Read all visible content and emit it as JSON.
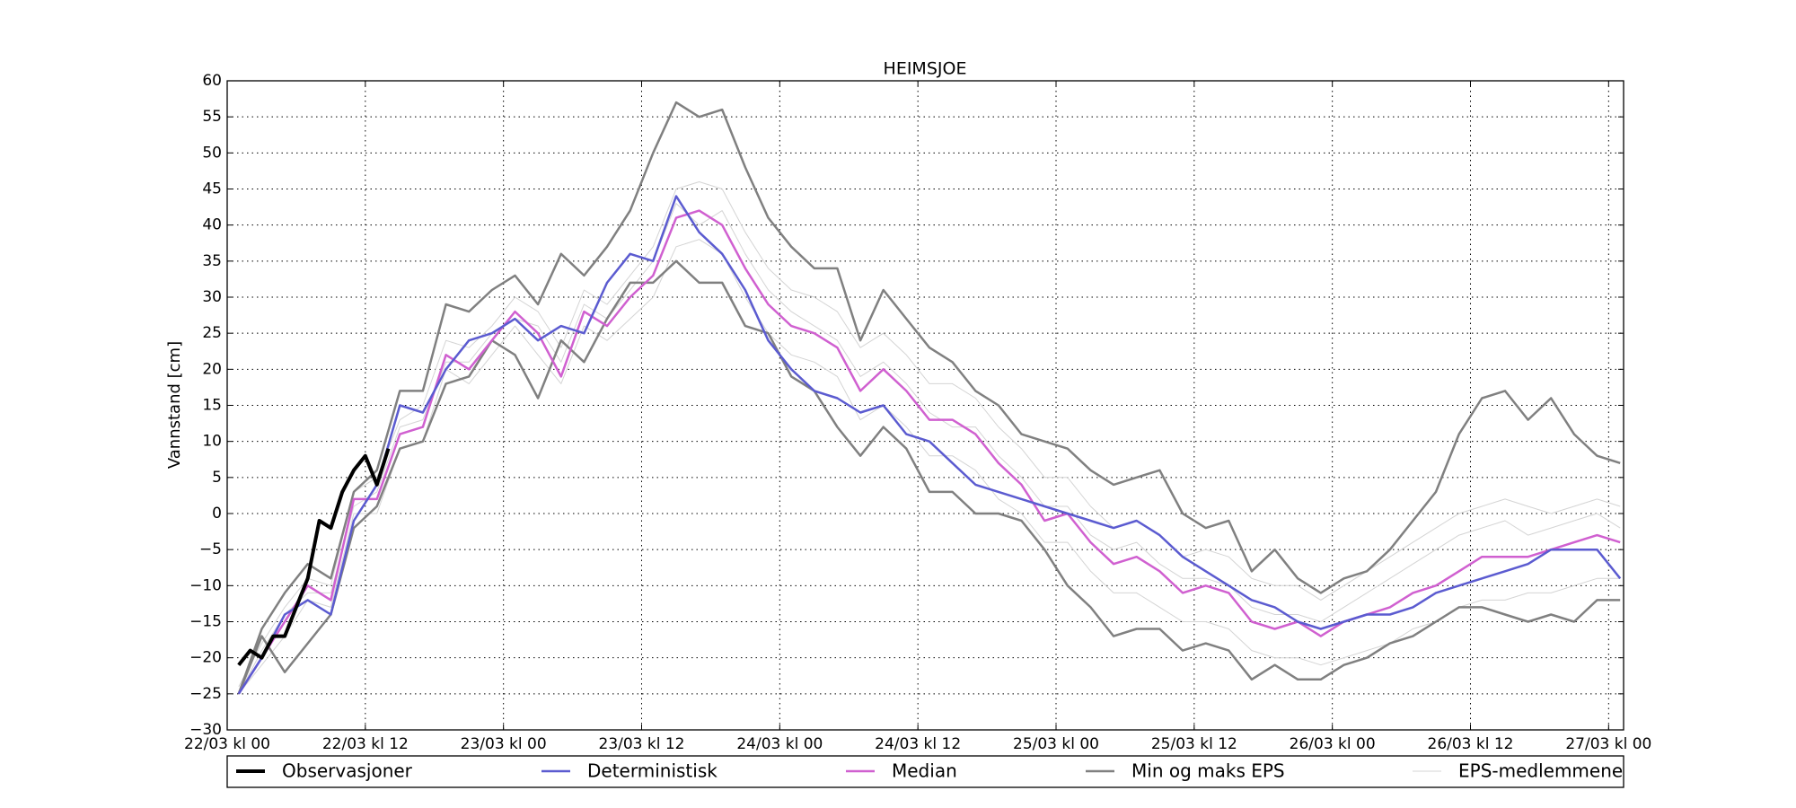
{
  "chart_data": {
    "type": "line",
    "title": "HEIMSJOE",
    "y_label": "Vannstand [cm]",
    "x": [
      1,
      3,
      5,
      7,
      9,
      11,
      13,
      15,
      17,
      19,
      21,
      23,
      25,
      27,
      29,
      31,
      33,
      35,
      37,
      39,
      41,
      43,
      45,
      47,
      49,
      51,
      53,
      55,
      57,
      59,
      61,
      63,
      65,
      67,
      69,
      71,
      73,
      75,
      77,
      79,
      81,
      83,
      85,
      87,
      89,
      91,
      93,
      95,
      97,
      99,
      101,
      103,
      105,
      107,
      109,
      111,
      113,
      115,
      117,
      119,
      121
    ],
    "xlim": [
      0,
      121.3
    ],
    "xticks": [
      {
        "value": 0,
        "label": "22/03 kl 00"
      },
      {
        "value": 12,
        "label": "22/03 kl 12"
      },
      {
        "value": 24,
        "label": "23/03 kl 00"
      },
      {
        "value": 36,
        "label": "23/03 kl 12"
      },
      {
        "value": 48,
        "label": "24/03 kl 00"
      },
      {
        "value": 60,
        "label": "24/03 kl 12"
      },
      {
        "value": 72,
        "label": "25/03 kl 00"
      },
      {
        "value": 84,
        "label": "25/03 kl 12"
      },
      {
        "value": 96,
        "label": "26/03 kl 00"
      },
      {
        "value": 108,
        "label": "26/03 kl 12"
      },
      {
        "value": 120,
        "label": "27/03 kl 00"
      }
    ],
    "ylim": [
      -30,
      60
    ],
    "yticks": [
      {
        "value": -30,
        "label": "−30"
      },
      {
        "value": -25,
        "label": "−25"
      },
      {
        "value": -20,
        "label": "−20"
      },
      {
        "value": -15,
        "label": "−15"
      },
      {
        "value": -10,
        "label": "−10"
      },
      {
        "value": -5,
        "label": "−5"
      },
      0,
      5,
      10,
      15,
      20,
      25,
      30,
      35,
      40,
      45,
      50,
      55,
      60
    ],
    "grid": true,
    "legend": "bottom",
    "series": [
      {
        "name": "Observasjoner",
        "color": "#000000",
        "x": [
          1,
          2,
          3,
          4,
          5,
          6,
          7,
          8,
          9,
          10,
          11,
          12,
          13,
          14
        ],
        "values": [
          -21,
          -19,
          -20,
          -17,
          -17,
          -13,
          -9,
          -1,
          -2,
          3,
          6,
          8,
          4,
          9
        ]
      },
      {
        "name": "Deterministisk",
        "color": "#5b5bd0",
        "values": [
          -25,
          -20,
          -14,
          -12,
          -14,
          -1,
          4,
          15,
          14,
          20,
          24,
          25,
          27,
          24,
          26,
          25,
          32,
          36,
          35,
          44,
          39,
          36,
          31,
          24,
          20,
          17,
          16,
          14,
          15,
          11,
          10,
          7,
          4,
          3,
          2,
          1,
          0,
          -1,
          -2,
          -1,
          -3,
          -6,
          -8,
          -10,
          -12,
          -13,
          -15,
          -16,
          -15,
          -14,
          -14,
          -13,
          -11,
          -10,
          -9,
          -8,
          -7,
          -5,
          -5,
          -5,
          -9
        ]
      },
      {
        "name": "Median",
        "color": "#d060d0",
        "values": [
          -25,
          -20,
          -15,
          -10,
          -12,
          2,
          2,
          11,
          12,
          22,
          20,
          24,
          28,
          25,
          19,
          28,
          26,
          30,
          33,
          41,
          42,
          40,
          34,
          29,
          26,
          25,
          23,
          17,
          20,
          17,
          13,
          13,
          11,
          7,
          4,
          -1,
          0,
          -4,
          -7,
          -6,
          -8,
          -11,
          -10,
          -11,
          -15,
          -16,
          -15,
          -17,
          -15,
          -14,
          -13,
          -11,
          -10,
          -8,
          -6,
          -6,
          -6,
          -5,
          -4,
          -3,
          -4
        ]
      },
      {
        "name": "Min og maks EPS",
        "color": "#808080",
        "lower": [
          -25,
          -17,
          -22,
          -18,
          -14,
          -2,
          1,
          9,
          10,
          18,
          19,
          24,
          22,
          16,
          24,
          21,
          27,
          32,
          32,
          35,
          32,
          32,
          26,
          25,
          19,
          17,
          12,
          8,
          12,
          9,
          3,
          3,
          0,
          0,
          -1,
          -5,
          -10,
          -13,
          -17,
          -16,
          -16,
          -19,
          -18,
          -19,
          -23,
          -21,
          -23,
          -23,
          -21,
          -20,
          -18,
          -17,
          -15,
          -13,
          -13,
          -14,
          -15,
          -14,
          -15,
          -12,
          -12
        ],
        "upper": [
          -25,
          -16,
          -11,
          -7,
          -9,
          3,
          6,
          17,
          17,
          29,
          28,
          31,
          33,
          29,
          36,
          33,
          37,
          42,
          50,
          57,
          55,
          56,
          48,
          41,
          37,
          34,
          34,
          24,
          31,
          27,
          23,
          21,
          17,
          15,
          11,
          10,
          9,
          6,
          4,
          5,
          6,
          0,
          -2,
          -1,
          -8,
          -5,
          -9,
          -11,
          -9,
          -8,
          -5,
          -1,
          3,
          11,
          16,
          17,
          13,
          16,
          11,
          8,
          7
        ]
      }
    ],
    "eps_members": {
      "name": "EPS-medlemmene",
      "color": "#d4d4d4",
      "members": [
        [
          -24,
          -18,
          -13,
          -9,
          -10,
          3,
          5,
          13,
          15,
          24,
          23,
          26,
          30,
          28,
          23,
          31,
          29,
          33,
          37,
          45,
          46,
          45,
          39,
          34,
          31,
          30,
          28,
          23,
          25,
          22,
          18,
          18,
          16,
          12,
          9,
          5,
          5,
          1,
          -2,
          -1,
          -3,
          -6,
          -5,
          -6,
          -9,
          -10,
          -10,
          -12,
          -10,
          -8,
          -6,
          -4,
          -2,
          0,
          1,
          2,
          1,
          0,
          1,
          2,
          1
        ],
        [
          -25,
          -21,
          -17,
          -12,
          -13,
          0,
          0,
          9,
          10,
          20,
          18,
          22,
          26,
          22,
          18,
          26,
          24,
          27,
          30,
          37,
          38,
          36,
          30,
          25,
          22,
          21,
          19,
          13,
          15,
          12,
          8,
          8,
          6,
          2,
          0,
          -4,
          -4,
          -8,
          -11,
          -11,
          -13,
          -15,
          -15,
          -16,
          -19,
          -20,
          -20,
          -21,
          -20,
          -19,
          -18,
          -16,
          -15,
          -13,
          -12,
          -12,
          -11,
          -11,
          -10,
          -9,
          -9
        ],
        [
          -25,
          -19,
          -14,
          -11,
          -11,
          1,
          3,
          12,
          13,
          21,
          21,
          25,
          27,
          26,
          21,
          29,
          27,
          31,
          35,
          43,
          40,
          42,
          36,
          31,
          28,
          26,
          24,
          19,
          21,
          18,
          14,
          12,
          12,
          8,
          5,
          1,
          1,
          -3,
          -5,
          -4,
          -7,
          -9,
          -9,
          -10,
          -13,
          -14,
          -14,
          -15,
          -13,
          -11,
          -9,
          -7,
          -5,
          -3,
          -2,
          -1,
          -3,
          -2,
          -1,
          0,
          -2
        ]
      ]
    }
  }
}
